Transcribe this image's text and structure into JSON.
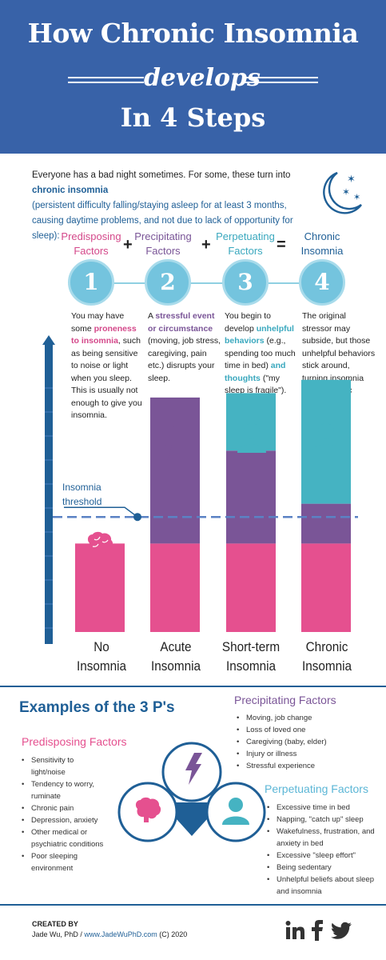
{
  "header": {
    "title_line1": "How Chronic Insomnia",
    "title_line2": "develops",
    "title_line3": "In 4 Steps"
  },
  "intro": {
    "part1": "Everyone has a bad night sometimes. For some, these turn into ",
    "highlight": "chronic insomnia",
    "part2": "(persistent difficulty falling/staying asleep for at least 3 months, causing daytime problems, and not due to lack of opportunity for sleep):"
  },
  "factors": [
    {
      "line1": "Predisposing",
      "line2": "Factors",
      "color": "#d4488a"
    },
    {
      "line1": "Precipitating",
      "line2": "Factors",
      "color": "#7a5597"
    },
    {
      "line1": "Perpetuating",
      "line2": "Factors",
      "color": "#3aa8be"
    },
    {
      "line1": "Chronic",
      "line2": "Insomnia",
      "color": "#1f5f96"
    }
  ],
  "operators": [
    "+",
    "+",
    "="
  ],
  "steps": [
    "1",
    "2",
    "3",
    "4"
  ],
  "descriptions": [
    {
      "a": "You may have some ",
      "b": "proneness to insomnia",
      "c": ", such as being sensitive to noise or light when you sleep. This is usually not enough to give you insomnia."
    },
    {
      "a": "A ",
      "b": "stressful event or circumstance",
      "c": " (moving, job stress, caregiving, pain etc.) disrupts your sleep."
    },
    {
      "a": "You begin to develop ",
      "b": "unhelpful behaviors",
      "c": " (e.g., spending too much time in bed) ",
      "d": "and thoughts",
      "e": " (\"my sleep is fragile\")."
    },
    {
      "a": "The original stressor may subside, but those unhelpful behaviors stick around, turning insomnia into a chronic problem."
    }
  ],
  "threshold": {
    "line1": "Insomnia",
    "line2": "threshold"
  },
  "chart_data": {
    "type": "bar",
    "stacked": true,
    "categories": [
      "No Insomnia",
      "Acute Insomnia",
      "Short-term Insomnia",
      "Chronic Insomnia"
    ],
    "series": [
      {
        "name": "Predisposing Factors",
        "color": "#e5508f",
        "values": [
          2.0,
          2.0,
          2.0,
          2.0
        ]
      },
      {
        "name": "Precipitating Factors",
        "color": "#7a5597",
        "values": [
          0,
          3.3,
          2.1,
          0.9
        ]
      },
      {
        "name": "Perpetuating Factors",
        "color": "#45b3c2",
        "values": [
          0,
          0,
          1.3,
          2.8
        ]
      }
    ],
    "threshold_value": 2.6,
    "ylim": [
      0,
      6.6
    ]
  },
  "x_labels": [
    {
      "line1": "No",
      "line2": "Insomnia"
    },
    {
      "line1": "Acute",
      "line2": "Insomnia"
    },
    {
      "line1": "Short-term",
      "line2": "Insomnia"
    },
    {
      "line1": "Chronic",
      "line2": "Insomnia"
    }
  ],
  "examples": {
    "title": "Examples of the 3 P's",
    "predisposing": {
      "heading": "Predisposing Factors",
      "items": [
        "Sensitivity to light/noise",
        "Tendency to worry, ruminate",
        "Chronic pain",
        "Depression, anxiety",
        "Other medical or psychiatric conditions",
        "Poor sleeping environment"
      ]
    },
    "precipitating": {
      "heading": "Precipitating Factors",
      "items": [
        "Moving, job change",
        "Loss of loved one",
        "Caregiving (baby, elder)",
        "Injury or illness",
        "Stressful experience"
      ]
    },
    "perpetuating": {
      "heading": "Perpetuating Factors",
      "items": [
        "Excessive time in bed",
        "Napping, \"catch up\" sleep",
        "Wakefulness, frustration, and anxiety in bed",
        "Excessive \"sleep effort\"",
        "Being sedentary",
        "Unhelpful beliefs about sleep and insomnia"
      ]
    }
  },
  "footer": {
    "created_by": "CREATED BY",
    "author": "Jade Wu, PhD",
    "separator": " / ",
    "url": "www.JadeWuPhD.com",
    "copyright": " (C) 2020"
  },
  "icons": {
    "moon": "moon-stars-icon",
    "brain": "brain-icon",
    "lightning": "lightning-bolt-icon",
    "person": "person-icon",
    "linkedin": "linkedin-icon",
    "facebook": "facebook-icon",
    "twitter": "twitter-icon"
  }
}
